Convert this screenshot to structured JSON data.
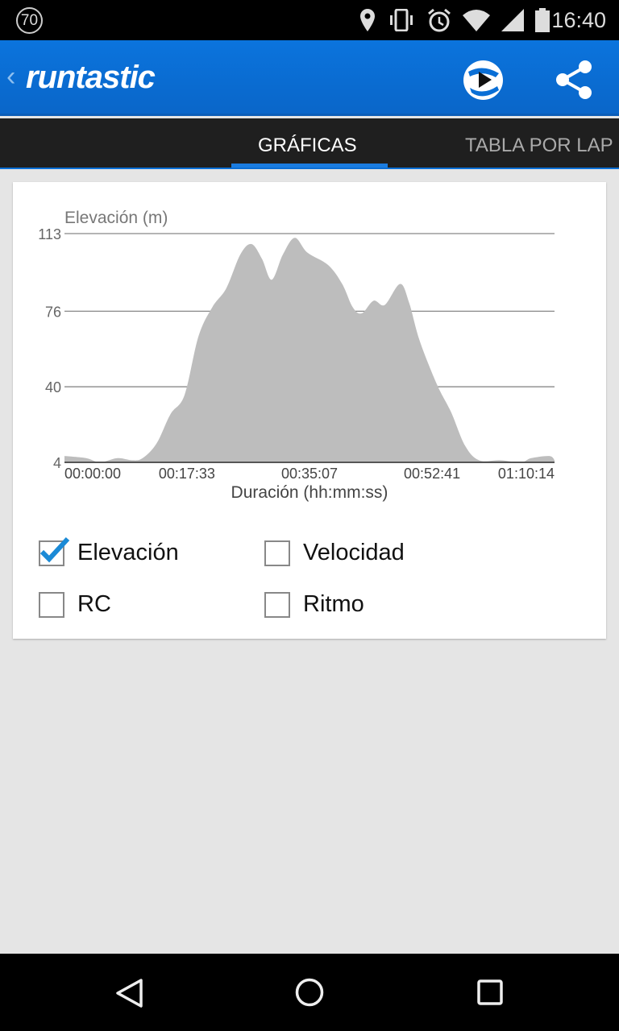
{
  "status_bar": {
    "badge": "70",
    "time": "16:40",
    "icons": [
      "location-icon",
      "vibrate-icon",
      "alarm-icon",
      "wifi-icon",
      "signal-icon",
      "battery-icon"
    ]
  },
  "app_bar": {
    "logo": "runtastic",
    "icons": [
      "back-icon",
      "play-icon",
      "share-icon"
    ],
    "color": "#0a6fd6"
  },
  "tabs": [
    {
      "label": "GRÁFICAS",
      "active": true
    },
    {
      "label": "TABLA POR LAP"
    }
  ],
  "chart_data": {
    "type": "area",
    "ylabel": "Elevación (m)",
    "xlabel": "Duración (hh:mm:ss)",
    "yticks": [
      "113",
      "76",
      "40",
      "4"
    ],
    "ylim": [
      4,
      113
    ],
    "xticks": [
      "00:00:00",
      "00:17:33",
      "00:35:07",
      "00:52:41",
      "01:10:14"
    ],
    "xlim": [
      "00:00:00",
      "01:10:14"
    ],
    "grid": true,
    "fill_color": "#bdbdbd",
    "x": [
      "00:00:00",
      "00:03:06",
      "00:05:06",
      "00:07:36",
      "00:09:42",
      "00:11:12",
      "00:13:12",
      "00:15:12",
      "00:17:12",
      "00:19:12",
      "00:21:12",
      "00:23:12",
      "00:25:12",
      "00:26:48",
      "00:28:18",
      "00:29:42",
      "00:31:18",
      "00:33:00",
      "00:34:48",
      "00:37:48",
      "00:39:48",
      "00:41:18",
      "00:42:36",
      "00:44:18",
      "00:45:54",
      "00:48:06",
      "00:49:24",
      "00:50:54",
      "00:53:24",
      "00:55:24",
      "00:57:24",
      "00:59:24",
      "01:02:24",
      "01:05:24",
      "01:06:54",
      "01:09:30",
      "01:10:14"
    ],
    "y": [
      7,
      6,
      4,
      6,
      5,
      6,
      13,
      27,
      36,
      64,
      78,
      87,
      103,
      108,
      101,
      91,
      103,
      111,
      104,
      98,
      89,
      78,
      75,
      81,
      79,
      89,
      80,
      62,
      41,
      28,
      12,
      5,
      5,
      4,
      6,
      7,
      5
    ]
  },
  "checkboxes": [
    {
      "label": "Elevación",
      "checked": true
    },
    {
      "label": "Velocidad",
      "checked": false
    },
    {
      "label": "RC",
      "checked": false
    },
    {
      "label": "Ritmo",
      "checked": false
    }
  ],
  "nav_bar": {
    "icons": [
      "back-triangle-icon",
      "home-circle-icon",
      "recents-square-icon"
    ]
  }
}
